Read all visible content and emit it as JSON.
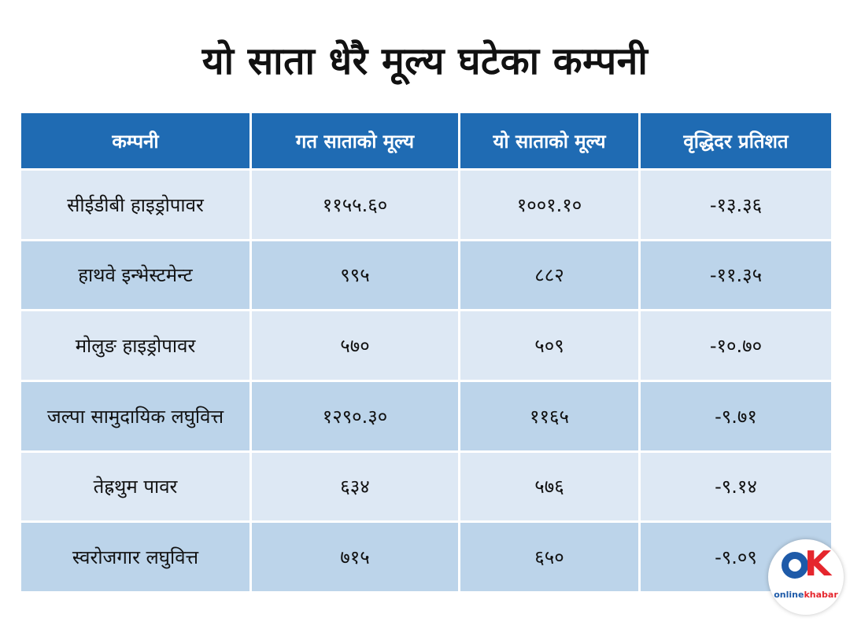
{
  "title": "यो साता धेरै मूल्य घटेका कम्पनी",
  "headers": [
    "कम्पनी",
    "गत साताको मूल्य",
    "यो साताको मूल्य",
    "वृद्धिदर प्रतिशत"
  ],
  "rows": [
    {
      "company": "सीईडीबी हाइड्रोपावर",
      "last_week": "११५५.६०",
      "this_week": "१००१.१०",
      "change": "-१३.३६"
    },
    {
      "company": "हाथवे इन्भेस्टमेन्ट",
      "last_week": "९९५",
      "this_week": "८८२",
      "change": "-११.३५"
    },
    {
      "company": "मोलुङ हाइड्रोपावर",
      "last_week": "५७०",
      "this_week": "५०९",
      "change": "-१०.७०"
    },
    {
      "company": "जल्पा सामुदायिक लघुवित्त",
      "last_week": "१२९०.३०",
      "this_week": "११६५",
      "change": "-९.७१"
    },
    {
      "company": "तेह्रथुम पावर",
      "last_week": "६३४",
      "this_week": "५७६",
      "change": "-९.१४"
    },
    {
      "company": "स्वरोजगार लघुवित्त",
      "last_week": "७१५",
      "this_week": "६५०",
      "change": "-९.०९"
    }
  ],
  "logo": {
    "brand_prefix": "online",
    "brand_highlight": "khabar",
    "accent_color": "#e5262d",
    "primary_color": "#1e5aa8"
  },
  "colors": {
    "header_bg": "#1f6bb3",
    "row_light": "#dde8f4",
    "row_dark": "#bcd4ea"
  }
}
